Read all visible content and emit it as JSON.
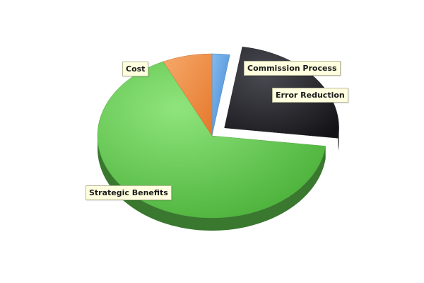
{
  "chart_data": {
    "type": "pie",
    "title": "",
    "legend": "none",
    "slices": [
      {
        "label": "Commission Process",
        "value": 2.5,
        "color": "#5b9ee0",
        "exploded": false
      },
      {
        "label": "Error Reduction",
        "value": 24.5,
        "color": "#2a2a30",
        "exploded": true
      },
      {
        "label": "Strategic Benefits",
        "value": 66,
        "color": "#5cc24a",
        "exploded": false
      },
      {
        "label": "Cost",
        "value": 7,
        "color": "#eb8c45",
        "exploded": false
      }
    ]
  }
}
